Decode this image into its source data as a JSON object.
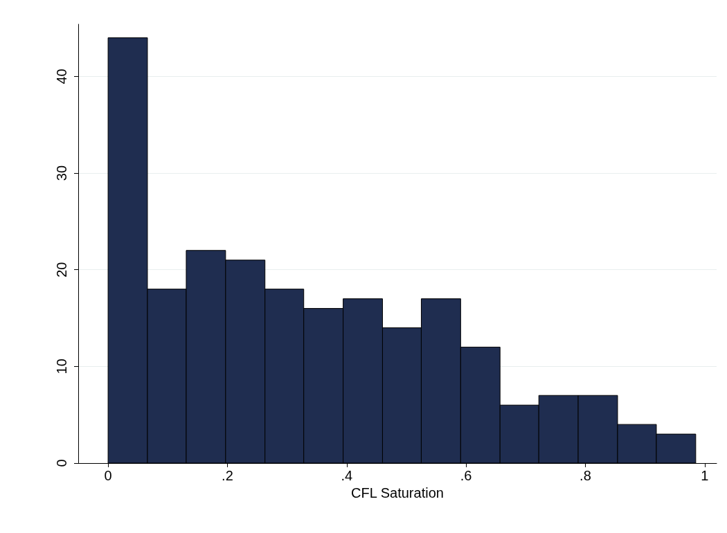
{
  "chart_data": {
    "type": "histogram",
    "xlabel": "CFL Saturation",
    "bins": [
      0,
      0.066,
      0.131,
      0.197,
      0.263,
      0.328,
      0.394,
      0.46,
      0.525,
      0.591,
      0.657,
      0.722,
      0.788,
      0.854,
      0.919,
      0.985
    ],
    "values": [
      44,
      18,
      22,
      21,
      18,
      16,
      17,
      14,
      17,
      12,
      6,
      7,
      7,
      4,
      3
    ],
    "color": "#1f2d50",
    "xlim": [
      -0.05,
      1.02
    ],
    "xticks": [
      0,
      {
        "value": 0.2,
        "label": ".2"
      },
      {
        "value": 0.4,
        "label": ".4"
      },
      {
        "value": 0.6,
        "label": ".6"
      },
      {
        "value": 0.8,
        "label": ".8"
      },
      1
    ],
    "ylim": [
      0,
      45.4
    ],
    "yticks": [
      0,
      10,
      20,
      30,
      40
    ],
    "grid": "y"
  }
}
